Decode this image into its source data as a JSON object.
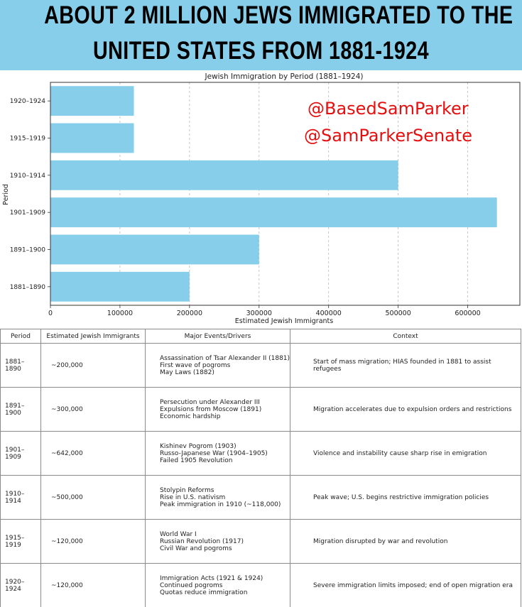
{
  "banner": {
    "line1": "ABOUT 2 MILLION JEWS IMMIGRATED TO THE",
    "line2": "UNITED STATES FROM 1881-1924",
    "background": "#87ceeb"
  },
  "overlay": {
    "handle1": "@BasedSamParker",
    "handle2": "@SamParkerSenate",
    "color": "#e60f0f"
  },
  "chart_data": {
    "type": "bar",
    "orientation": "horizontal",
    "title": "Jewish Immigration by Period (1881–1924)",
    "xlabel": "Estimated Jewish Immigrants",
    "ylabel": "Period",
    "categories": [
      "1881–1890",
      "1891–1900",
      "1901–1909",
      "1910–1914",
      "1915–1919",
      "1920–1924"
    ],
    "values": [
      200000,
      300000,
      642000,
      500000,
      120000,
      120000
    ],
    "xlim": [
      0,
      675000
    ],
    "xticks": [
      0,
      100000,
      200000,
      300000,
      400000,
      500000,
      600000
    ],
    "grid": "vertical-dashed",
    "bar_color": "#87ceeb"
  },
  "table": {
    "headers": [
      "Period",
      "Estimated Jewish Immigrants",
      "Major Events/Drivers",
      "Context"
    ],
    "rows": [
      {
        "period": "1881–1890",
        "estimate": "~200,000",
        "events": [
          "Assassination of Tsar Alexander II (1881)",
          "First wave of pogroms",
          "May Laws (1882)"
        ],
        "context": "Start of mass migration; HIAS founded in 1881 to assist refugees"
      },
      {
        "period": "1891–1900",
        "estimate": "~300,000",
        "events": [
          "Persecution under Alexander III",
          "Expulsions from Moscow (1891)",
          "Economic hardship"
        ],
        "context": "Migration accelerates due to expulsion orders and restrictions"
      },
      {
        "period": "1901–1909",
        "estimate": "~642,000",
        "events": [
          "Kishinev Pogrom (1903)",
          "Russo-Japanese War (1904–1905)",
          "Failed 1905 Revolution"
        ],
        "context": "Violence and instability cause sharp rise in emigration"
      },
      {
        "period": "1910–1914",
        "estimate": "~500,000",
        "events": [
          "Stolypin Reforms",
          "Rise in U.S. nativism",
          "Peak immigration in 1910 (~118,000)"
        ],
        "context": "Peak wave; U.S. begins restrictive immigration policies"
      },
      {
        "period": "1915–1919",
        "estimate": "~120,000",
        "events": [
          "World War I",
          "Russian Revolution (1917)",
          "Civil War and pogroms"
        ],
        "context": "Migration disrupted by war and revolution"
      },
      {
        "period": "1920–1924",
        "estimate": "~120,000",
        "events": [
          "Immigration Acts (1921 & 1924)",
          "Continued pogroms",
          "Quotas reduce immigration"
        ],
        "context": "Severe immigration limits imposed; end of open migration era"
      }
    ]
  }
}
